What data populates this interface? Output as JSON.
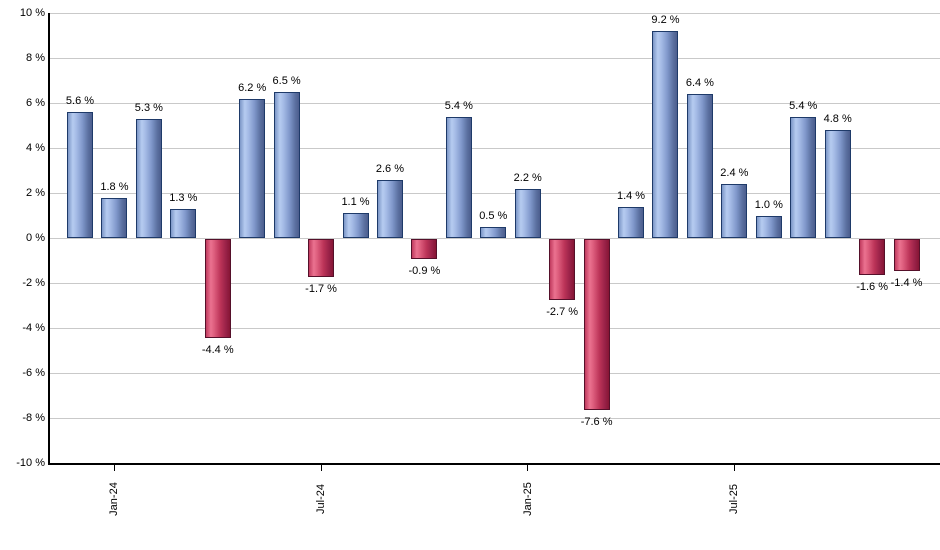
{
  "chart_data": {
    "type": "bar",
    "title": "",
    "xlabel": "",
    "ylabel": "",
    "ylim": [
      -10,
      10
    ],
    "y_tick_step": 2,
    "grid": true,
    "background_color": "#ffffff",
    "gridline_color": "#c9c9c9",
    "axis_color": "#000000",
    "bars": [
      {
        "value": 5.6,
        "label": "5.6 %"
      },
      {
        "value": 1.8,
        "label": "1.8 %"
      },
      {
        "value": 5.3,
        "label": "5.3 %"
      },
      {
        "value": 1.3,
        "label": "1.3 %"
      },
      {
        "value": -4.4,
        "label": "-4.4 %"
      },
      {
        "value": 6.2,
        "label": "6.2 %"
      },
      {
        "value": 6.5,
        "label": "6.5 %"
      },
      {
        "value": -1.7,
        "label": "-1.7 %"
      },
      {
        "value": 1.1,
        "label": "1.1 %"
      },
      {
        "value": 2.6,
        "label": "2.6 %"
      },
      {
        "value": -0.9,
        "label": "-0.9 %"
      },
      {
        "value": 5.4,
        "label": "5.4 %"
      },
      {
        "value": 0.5,
        "label": "0.5 %"
      },
      {
        "value": 2.2,
        "label": "2.2 %"
      },
      {
        "value": -2.7,
        "label": "-2.7 %"
      },
      {
        "value": -7.6,
        "label": "-7.6 %"
      },
      {
        "value": 1.4,
        "label": "1.4 %"
      },
      {
        "value": 9.2,
        "label": "9.2 %"
      },
      {
        "value": 6.4,
        "label": "6.4 %"
      },
      {
        "value": 2.4,
        "label": "2.4 %"
      },
      {
        "value": 1.0,
        "label": "1.0 %"
      },
      {
        "value": 5.4,
        "label": "5.4 %"
      },
      {
        "value": 4.8,
        "label": "4.8 %"
      },
      {
        "value": -1.6,
        "label": "-1.6 %"
      },
      {
        "value": -1.4,
        "label": "-1.4 %"
      }
    ],
    "y_ticks": [
      {
        "value": 10,
        "label": "10 %"
      },
      {
        "value": 8,
        "label": "8 %"
      },
      {
        "value": 6,
        "label": "6 %"
      },
      {
        "value": 4,
        "label": "4 %"
      },
      {
        "value": 2,
        "label": "2 %"
      },
      {
        "value": 0,
        "label": "0 %"
      },
      {
        "value": -2,
        "label": "-2 %"
      },
      {
        "value": -4,
        "label": "-4 %"
      },
      {
        "value": -6,
        "label": "-6 %"
      },
      {
        "value": -8,
        "label": "-8 %"
      },
      {
        "value": -10,
        "label": "-10 %"
      }
    ],
    "x_ticks": [
      {
        "bar_index": 1,
        "label": "Jan-24"
      },
      {
        "bar_index": 7,
        "label": "Jul-24"
      },
      {
        "bar_index": 13,
        "label": "Jan-25"
      },
      {
        "bar_index": 19,
        "label": "Jul-25"
      }
    ],
    "legend": null,
    "positive_bar_colors": {
      "stops": [
        "#7C97C7",
        "#B6CBF0",
        "#A5BBE6",
        "#8098CB",
        "#5A6F9F",
        "#4C5E8E"
      ],
      "border": "#1E3A69"
    },
    "negative_bar_colors": {
      "stops": [
        "#C03A5E",
        "#EB7290",
        "#DC5C7C",
        "#BC3458",
        "#962046",
        "#871534"
      ],
      "border": "#55102A"
    }
  }
}
